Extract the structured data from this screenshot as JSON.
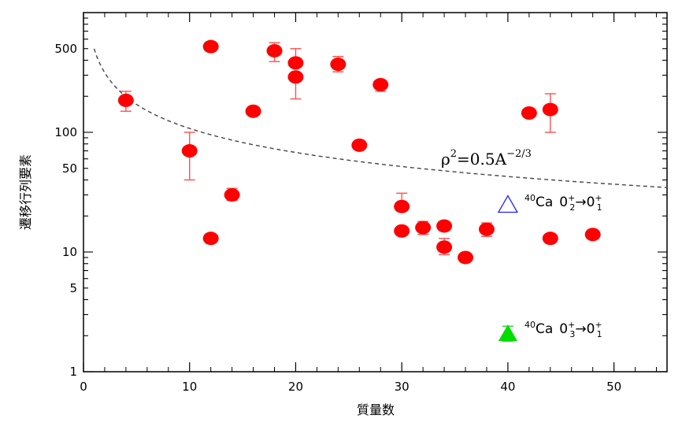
{
  "chart_data": {
    "type": "scatter",
    "xlabel": "質量数",
    "ylabel": "遷移行列要素",
    "xlim": [
      0,
      55
    ],
    "ylim": [
      1,
      1000
    ],
    "yscale": "log",
    "x_ticks": [
      "0",
      "10",
      "20",
      "30",
      "40",
      "50"
    ],
    "y_ticks": [
      {
        "value": 1,
        "label": "1"
      },
      {
        "value": 5,
        "label": "5"
      },
      {
        "value": 10,
        "label": "10"
      },
      {
        "value": 50,
        "label": "50"
      },
      {
        "value": 100,
        "label": "100"
      },
      {
        "value": 500,
        "label": "500"
      }
    ],
    "series": [
      {
        "marker": "circle",
        "color": "#ff0000",
        "errorbar_color": "#ff5050",
        "points": [
          {
            "x": 4,
            "y": 185,
            "lo": 150,
            "hi": 220
          },
          {
            "x": 10,
            "y": 70,
            "lo": 40,
            "hi": 100
          },
          {
            "x": 12,
            "y": 520,
            "lo": 520,
            "hi": 520
          },
          {
            "x": 12,
            "y": 13,
            "lo": 13,
            "hi": 13
          },
          {
            "x": 14,
            "y": 30,
            "lo": 27,
            "hi": 34
          },
          {
            "x": 16,
            "y": 150,
            "lo": 150,
            "hi": 150
          },
          {
            "x": 18,
            "y": 480,
            "lo": 390,
            "hi": 560
          },
          {
            "x": 20,
            "y": 380,
            "lo": 380,
            "hi": 500
          },
          {
            "x": 20,
            "y": 290,
            "lo": 190,
            "hi": 290
          },
          {
            "x": 24,
            "y": 370,
            "lo": 320,
            "hi": 430
          },
          {
            "x": 26,
            "y": 78,
            "lo": 78,
            "hi": 78
          },
          {
            "x": 28,
            "y": 250,
            "lo": 220,
            "hi": 270
          },
          {
            "x": 30,
            "y": 24,
            "lo": 24,
            "hi": 31
          },
          {
            "x": 30,
            "y": 15,
            "lo": 15,
            "hi": 15
          },
          {
            "x": 32,
            "y": 16,
            "lo": 14,
            "hi": 18
          },
          {
            "x": 34,
            "y": 16.5,
            "lo": 16.5,
            "hi": 16.5
          },
          {
            "x": 34,
            "y": 11,
            "lo": 9.5,
            "hi": 13
          },
          {
            "x": 36,
            "y": 9,
            "lo": 9,
            "hi": 9
          },
          {
            "x": 38,
            "y": 15.5,
            "lo": 13.5,
            "hi": 17.5
          },
          {
            "x": 42,
            "y": 145,
            "lo": 145,
            "hi": 145
          },
          {
            "x": 44,
            "y": 155,
            "lo": 100,
            "hi": 210
          },
          {
            "x": 44,
            "y": 13,
            "lo": 13,
            "hi": 13
          },
          {
            "x": 48,
            "y": 14,
            "lo": 14,
            "hi": 14
          }
        ]
      },
      {
        "marker": "open-triangle",
        "color": "#2222ff",
        "points": [
          {
            "x": 40,
            "y": 25
          }
        ]
      },
      {
        "marker": "filled-triangle",
        "color": "#00dd00",
        "errorbar_color": "#33cc33",
        "points": [
          {
            "x": 40,
            "y": 2.1,
            "lo": 1.8,
            "hi": 2.4
          }
        ]
      }
    ],
    "curve": {
      "style": "dashed",
      "color": "#444444",
      "label": "ρ²=0.5A^-2/3",
      "x_from": 1,
      "x_to": 55
    },
    "annotations": [
      {
        "id": "ca40_02",
        "iso": "40",
        "elem": "Ca",
        "state_from": "0",
        "from_sub": "2",
        "state_to": "0",
        "to_sub": "1",
        "sup": "+",
        "arrow": "→"
      },
      {
        "id": "ca40_03",
        "iso": "40",
        "elem": "Ca",
        "state_from": "0",
        "from_sub": "3",
        "state_to": "0",
        "to_sub": "1",
        "sup": "+",
        "arrow": "→"
      }
    ],
    "curve_label": {
      "rho": "ρ",
      "exp": "2",
      "rest": "=0.5A",
      "rest_exp": "−2/3"
    },
    "grid": false,
    "legend": "none"
  }
}
